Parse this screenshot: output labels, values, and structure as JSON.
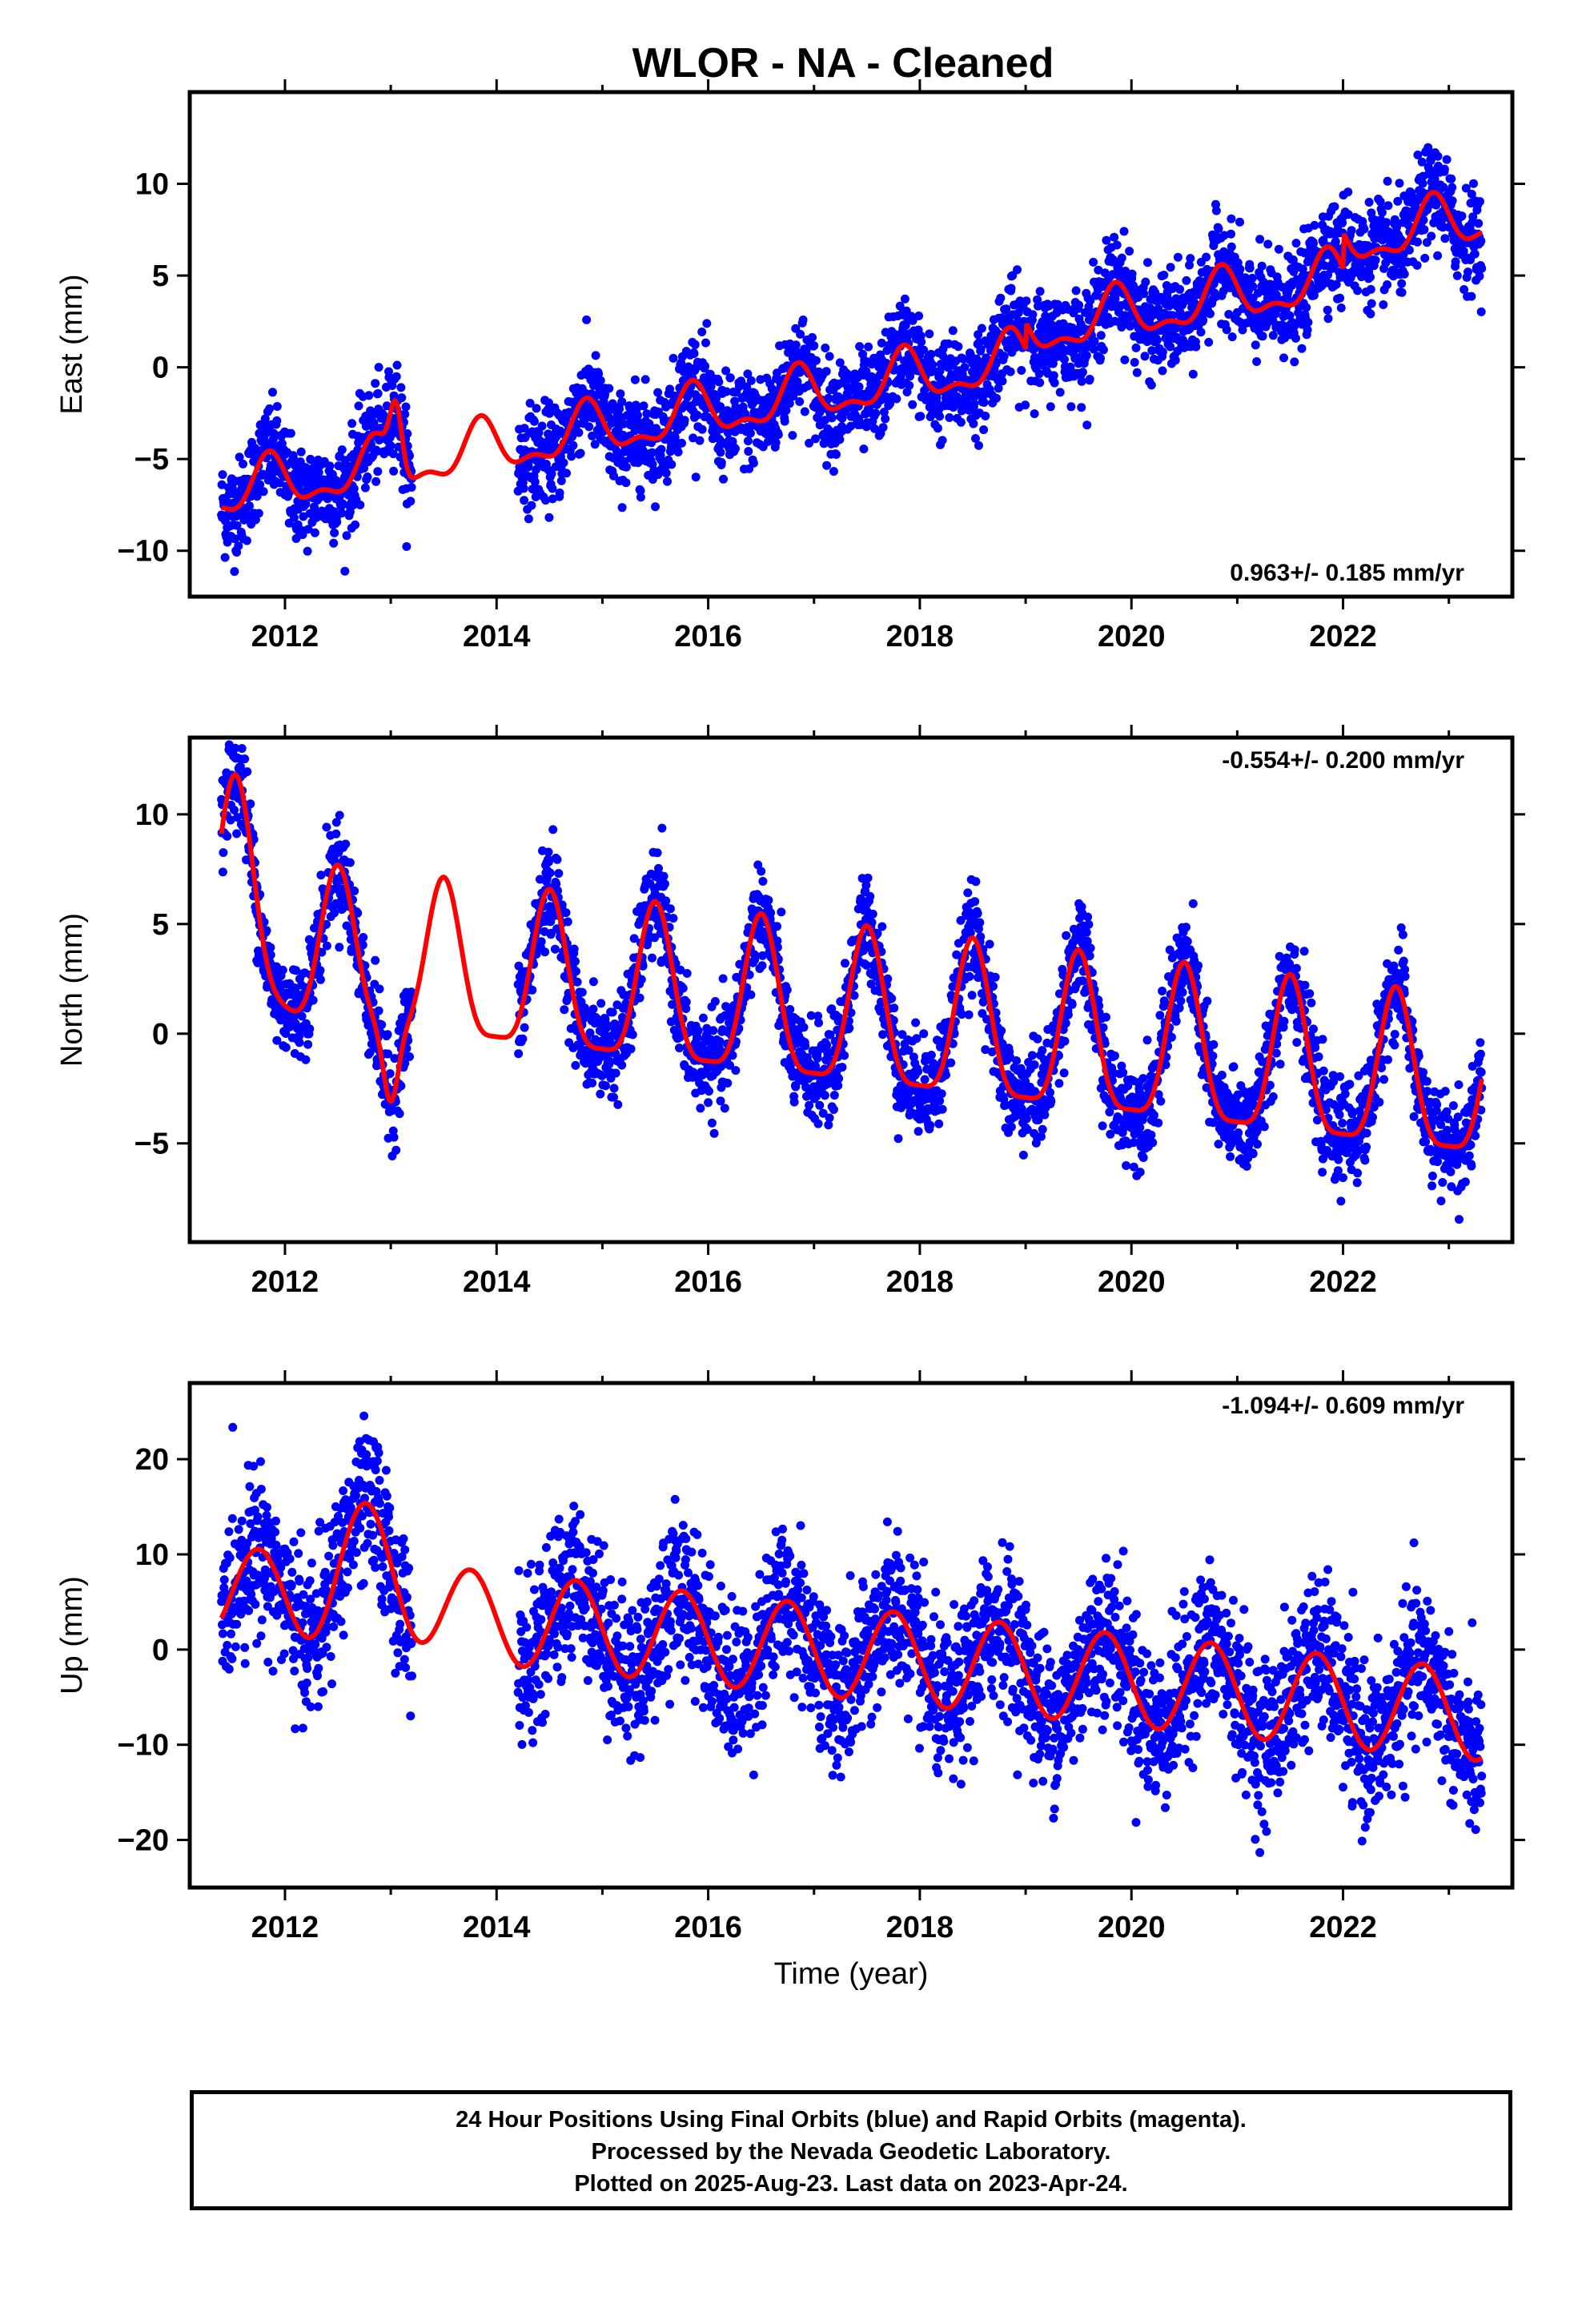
{
  "title": "WLOR  - NA - Cleaned",
  "footer": {
    "line1": "24 Hour Positions Using Final Orbits (blue) and Rapid Orbits (magenta).",
    "line2": "Processed by the Nevada Geodetic Laboratory.",
    "line3": "Plotted on 2025-Aug-23. Last data on 2023-Apr-24."
  },
  "colors": {
    "data_points": "#0000ff",
    "model_fit": "#ff0000",
    "frame": "#000000"
  },
  "chart_data": [
    {
      "type": "scatter",
      "name": "east",
      "ylabel": "East (mm)",
      "xlabel": "",
      "xlim": [
        2011.1,
        2023.6
      ],
      "ylim": [
        -12.5,
        15
      ],
      "xticks": [
        2012,
        2014,
        2016,
        2018,
        2020,
        2022
      ],
      "yticks": [
        -10,
        -5,
        0,
        5,
        10
      ],
      "rate_label": "0.963+/- 0.185 mm/yr",
      "rate_position": "bottom-right",
      "gaps": [
        [
          2013.2,
          2014.2
        ]
      ],
      "trend": {
        "rate": 0.963,
        "intercept_at_2017": -1.5
      },
      "seasonal": {
        "amplitude": 1.3,
        "phase_year": 0.85,
        "semiannual_amplitude": 0.6
      },
      "scatter_sd": 1.3,
      "data_range": [
        2011.4,
        2023.31
      ],
      "offsets": [
        {
          "year": 2019.0,
          "value": 1.5
        },
        {
          "year": 2022.0,
          "value": 2.0
        }
      ],
      "transients": [
        {
          "center": 2013.05,
          "width": 0.08,
          "value": 3.5
        }
      ]
    },
    {
      "type": "scatter",
      "name": "north",
      "ylabel": "North (mm)",
      "xlabel": "",
      "xlim": [
        2011.1,
        2023.6
      ],
      "ylim": [
        -9.5,
        13.5
      ],
      "xticks": [
        2012,
        2014,
        2016,
        2018,
        2020,
        2022
      ],
      "yticks": [
        -5,
        0,
        5,
        10
      ],
      "rate_label": "-0.554+/- 0.200 mm/yr",
      "rate_position": "top-right",
      "gaps": [
        [
          2013.2,
          2014.2
        ]
      ],
      "trend": {
        "rate": -0.554,
        "intercept_at_2017": 0.8
      },
      "seasonal": {
        "amplitude": 3.5,
        "phase_year": 0.5,
        "semiannual_amplitude": 0.9
      },
      "scatter_sd": 1.1,
      "data_range": [
        2011.4,
        2023.31
      ],
      "offsets": [],
      "transients": [
        {
          "center": 2011.6,
          "width": 0.25,
          "value": 4.0
        },
        {
          "center": 2013.0,
          "width": 0.1,
          "value": -3.5
        }
      ]
    },
    {
      "type": "scatter",
      "name": "up",
      "ylabel": "Up (mm)",
      "xlabel": "Time (year)",
      "xlim": [
        2011.1,
        2023.6
      ],
      "ylim": [
        -25,
        28
      ],
      "xticks": [
        2012,
        2014,
        2016,
        2018,
        2020,
        2022
      ],
      "yticks": [
        -20,
        -10,
        0,
        10,
        20
      ],
      "rate_label": "-1.094+/- 0.609 mm/yr",
      "rate_position": "top-right",
      "gaps": [
        [
          2013.2,
          2014.2
        ]
      ],
      "trend": {
        "rate": -1.094,
        "intercept_at_2017": 0.0
      },
      "seasonal": {
        "amplitude": 4.8,
        "phase_year": 0.75,
        "semiannual_amplitude": 0.0
      },
      "scatter_sd": 4.0,
      "data_range": [
        2011.4,
        2023.31
      ],
      "offsets": [],
      "transients": [
        {
          "center": 2012.8,
          "width": 0.4,
          "value": 6.0
        }
      ]
    }
  ]
}
